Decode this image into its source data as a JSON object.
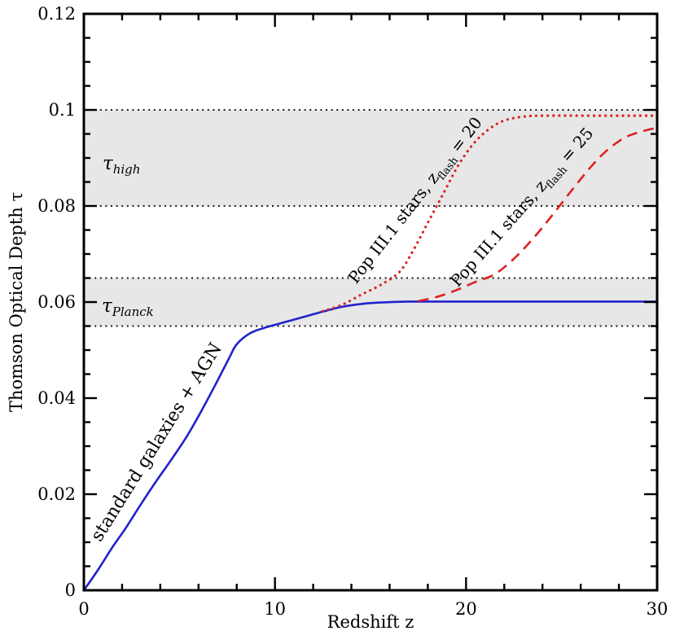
{
  "figure": {
    "background": "#ffffff",
    "frame_color": "#000000",
    "reference_line_color": "#1a1a1a",
    "band_fill": "#e7e7e7"
  },
  "chart_data": {
    "type": "line",
    "title": "",
    "xlabel": "Redshift z",
    "ylabel": "Thomson Optical Depth τ",
    "xlim": [
      0,
      30
    ],
    "ylim": [
      0,
      0.12
    ],
    "grid": false,
    "legend_position": "none",
    "x_major_ticks": [
      0,
      10,
      20,
      30
    ],
    "x_tick_labels": [
      "0",
      "10",
      "20",
      "30"
    ],
    "x_minor_step": 2,
    "y_major_ticks": [
      0,
      0.02,
      0.04,
      0.06,
      0.08,
      0.1,
      0.12
    ],
    "y_tick_labels": [
      "0",
      "0.02",
      "0.04",
      "0.06",
      "0.08",
      "0.1",
      "0.12"
    ],
    "y_minor_step": 0.005,
    "reference_lines": [
      0.055,
      0.065,
      0.08,
      0.1
    ],
    "bands": [
      {
        "slug": "tau-high",
        "from": 0.08,
        "to": 0.1,
        "label": {
          "prefix": "τ",
          "sub": "high",
          "suffix": ""
        },
        "label_pos": {
          "z": 0.98,
          "tau": 0.089
        }
      },
      {
        "slug": "tau-planck",
        "from": 0.055,
        "to": 0.065,
        "label": {
          "prefix": "τ",
          "sub": "Planck",
          "suffix": ""
        },
        "label_pos": {
          "z": 0.94,
          "tau": 0.0593
        }
      }
    ],
    "series": [
      {
        "name": "standard galaxies + AGN",
        "slug": "standard-galaxies-agn",
        "color": "#2222cc",
        "style": "solid",
        "points": [
          [
            0,
            0
          ],
          [
            0.7,
            0.004
          ],
          [
            1.5,
            0.009
          ],
          [
            2.2,
            0.013
          ],
          [
            3,
            0.018
          ],
          [
            3.8,
            0.0228
          ],
          [
            4.6,
            0.0273
          ],
          [
            5.4,
            0.0321
          ],
          [
            6.2,
            0.0377
          ],
          [
            7.0,
            0.0437
          ],
          [
            7.6,
            0.0483
          ],
          [
            8,
            0.0512
          ],
          [
            8.7,
            0.0535
          ],
          [
            9.5,
            0.0547
          ],
          [
            10.5,
            0.0558
          ],
          [
            11.5,
            0.0569
          ],
          [
            12.5,
            0.058
          ],
          [
            13.5,
            0.059
          ],
          [
            14.5,
            0.0596
          ],
          [
            15.5,
            0.0599
          ],
          [
            17,
            0.0601
          ],
          [
            20,
            0.0601
          ],
          [
            25,
            0.0601
          ],
          [
            30,
            0.0601
          ]
        ],
        "label": {
          "prefix": "standard galaxies + AGN",
          "sub": "",
          "suffix": ""
        },
        "label_pos": {
          "z": 4.05,
          "tau": 0.0302,
          "angle": -58
        }
      },
      {
        "name": "Pop III.1 stars, zflash = 20",
        "slug": "pop-iii1-stars-zflash-20",
        "color": "#dd2222",
        "style": "dotted",
        "points": [
          [
            12.5,
            0.0581
          ],
          [
            13.5,
            0.0594
          ],
          [
            14.5,
            0.0615
          ],
          [
            15.5,
            0.0635
          ],
          [
            16.5,
            0.0662
          ],
          [
            17.2,
            0.0705
          ],
          [
            18,
            0.0765
          ],
          [
            18.8,
            0.0825
          ],
          [
            19.6,
            0.0885
          ],
          [
            20.4,
            0.093
          ],
          [
            21.2,
            0.096
          ],
          [
            22,
            0.0978
          ],
          [
            23,
            0.0986
          ],
          [
            24,
            0.0988
          ],
          [
            27,
            0.0988
          ],
          [
            30,
            0.0988
          ]
        ],
        "label": {
          "prefix": "Pop III.1 stars, z",
          "sub": "flash",
          "suffix": " = 20"
        },
        "label_pos": {
          "z": 17.56,
          "tau": 0.0805,
          "angle": -52
        }
      },
      {
        "name": "Pop III.1 stars, zflash = 25",
        "slug": "pop-iii1-stars-zflash-25",
        "color": "#dd2222",
        "style": "dashed",
        "points": [
          [
            17.5,
            0.0602
          ],
          [
            18.5,
            0.0611
          ],
          [
            19.5,
            0.0625
          ],
          [
            20.5,
            0.0642
          ],
          [
            21.5,
            0.0658
          ],
          [
            22.5,
            0.069
          ],
          [
            23.5,
            0.0732
          ],
          [
            24.5,
            0.078
          ],
          [
            25.5,
            0.0831
          ],
          [
            26.5,
            0.088
          ],
          [
            27.3,
            0.0913
          ],
          [
            28.2,
            0.094
          ],
          [
            29,
            0.0953
          ],
          [
            30,
            0.0963
          ]
        ],
        "label": {
          "prefix": "Pop III.1 stars, z",
          "sub": "flash",
          "suffix": " = 25"
        },
        "label_pos": {
          "z": 23.14,
          "tau": 0.079,
          "angle": -48.5
        }
      }
    ]
  }
}
